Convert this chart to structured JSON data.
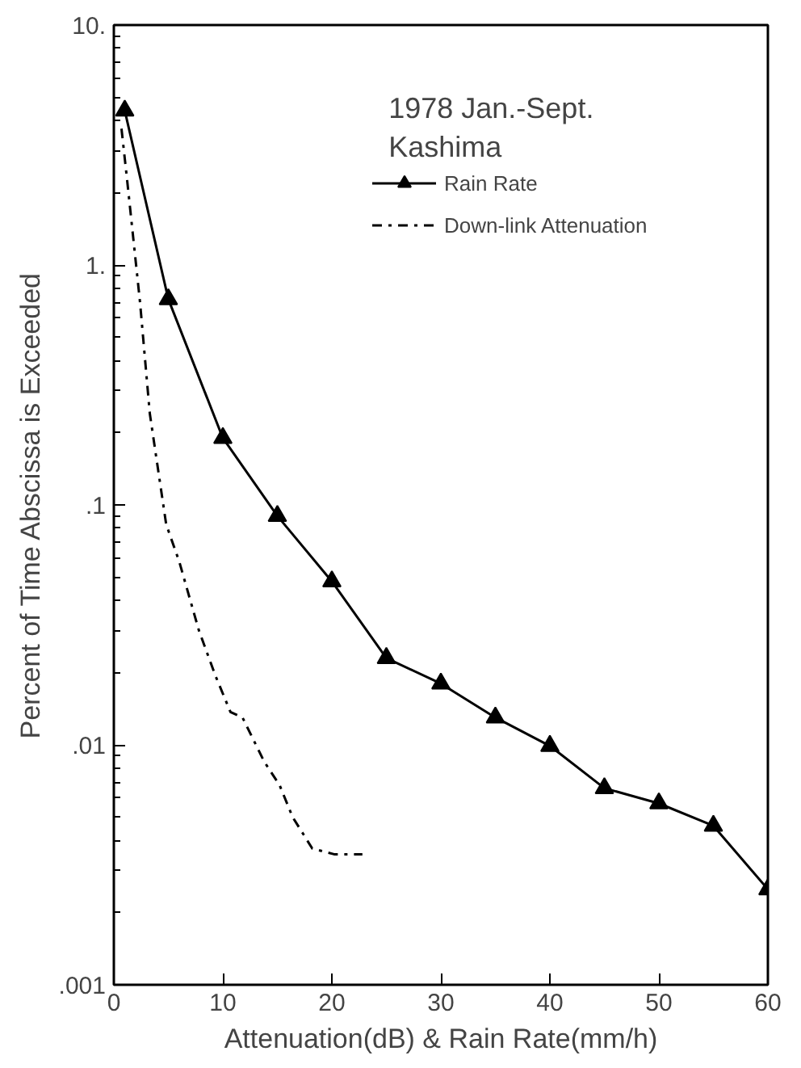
{
  "chart_data": {
    "type": "line",
    "xlabel": "Attenuation(dB) & Rain Rate(mm/h)",
    "ylabel": "Percent of Time Abscissa is Exceeded",
    "annotations": [
      "1978 Jan.-Sept.",
      "Kashima"
    ],
    "series": [
      {
        "name": "Rain Rate",
        "color": "#000000",
        "marker": "triangle",
        "line_style": "solid",
        "x": [
          1,
          5,
          10,
          15,
          20,
          25,
          30,
          35,
          40,
          45,
          50,
          55,
          60
        ],
        "values": [
          4.4,
          0.72,
          0.19,
          0.09,
          0.048,
          0.023,
          0.018,
          0.013,
          0.0099,
          0.0066,
          0.0057,
          0.0046,
          0.0025
        ]
      },
      {
        "name": "Down-link Attenuation",
        "color": "#000000",
        "marker": "none",
        "line_style": "dashdot",
        "x": [
          0.7,
          1.2,
          2.4,
          3.3,
          4.8,
          6.0,
          7.8,
          9.3,
          10.7,
          11.8,
          13.8,
          15.2,
          16.4,
          18.2,
          20.2,
          22.8
        ],
        "values": [
          3.7,
          2.3,
          0.7,
          0.24,
          0.083,
          0.058,
          0.03,
          0.0195,
          0.0137,
          0.013,
          0.0085,
          0.0068,
          0.005,
          0.0037,
          0.0035,
          0.0035
        ]
      }
    ],
    "log": "y",
    "xlim": [
      0,
      60
    ],
    "ylim": [
      0.001,
      10
    ],
    "xticks": [
      0,
      10,
      20,
      30,
      40,
      50,
      60
    ],
    "yticks": [
      {
        "value": 0.001,
        "label": ".001"
      },
      {
        "value": 0.01,
        "label": ".01"
      },
      {
        "value": 0.1,
        "label": ".1"
      },
      {
        "value": 1,
        "label": "1."
      },
      {
        "value": 10,
        "label": "10."
      }
    ],
    "grid": false,
    "legend": "top right"
  }
}
